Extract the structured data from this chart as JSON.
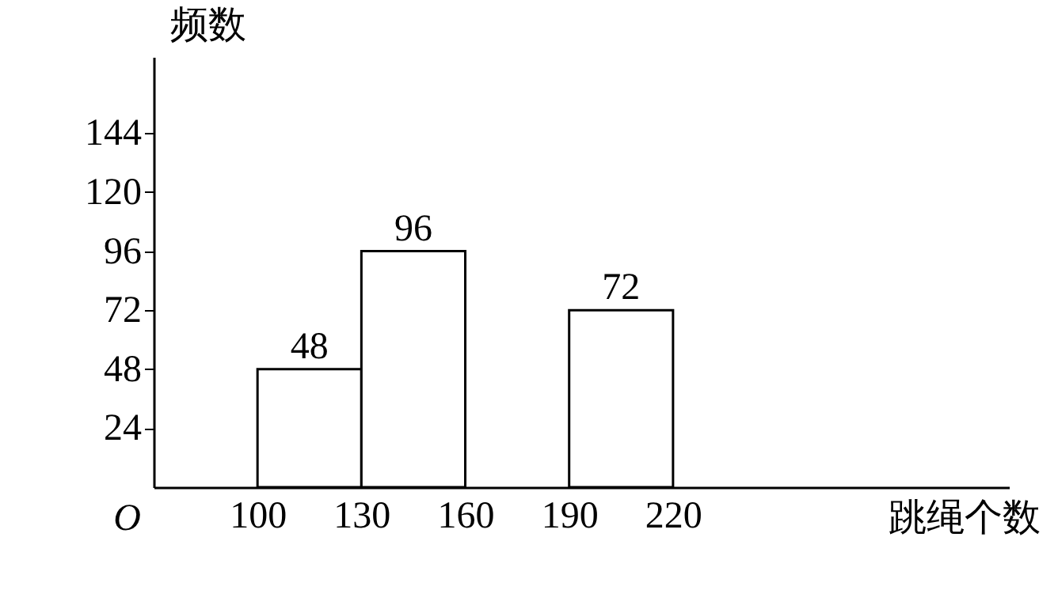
{
  "chart_data": {
    "type": "histogram",
    "xlabel": "跳绳个数",
    "ylabel": "频数",
    "bins": [
      100,
      130,
      160,
      190,
      220
    ],
    "values": [
      48,
      96,
      null,
      72
    ],
    "color": "#ffffff",
    "xlim": [
      70,
      317
    ],
    "ylim": [
      0,
      175
    ],
    "xticks": [
      100,
      130,
      160,
      190,
      220
    ],
    "yticks": [
      24,
      48,
      72,
      96,
      120,
      144
    ],
    "data_labels": true,
    "grid": false,
    "annotations": [
      "O"
    ]
  }
}
